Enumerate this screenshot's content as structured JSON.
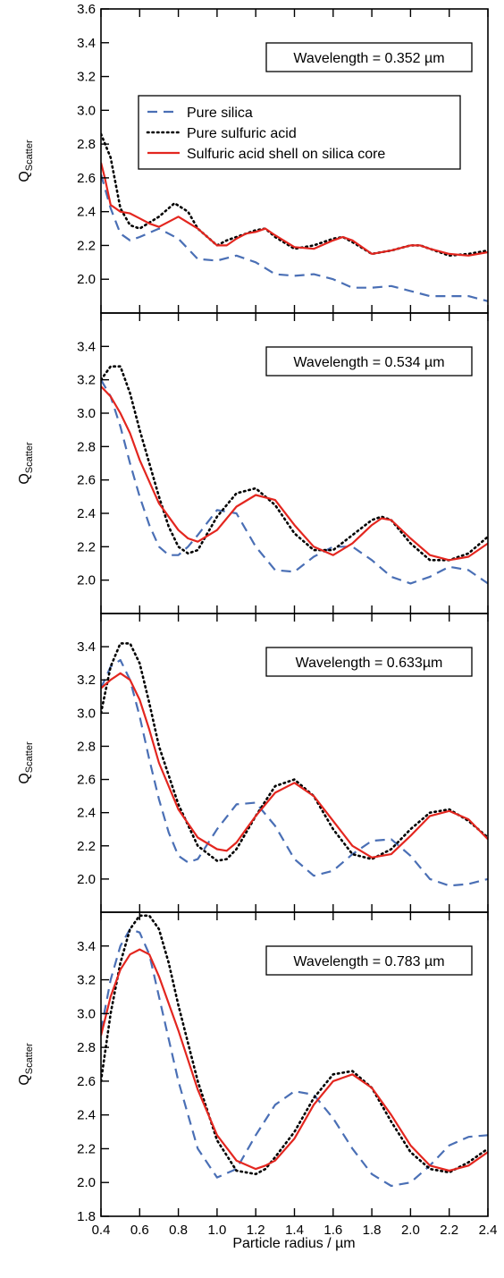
{
  "figure": {
    "xlabel": "Particle radius / µm",
    "ylabel_main": "Q",
    "ylabel_sub": "Scatter"
  },
  "legend": {
    "entries": [
      {
        "name": "Pure silica",
        "color": "#4a6fb5",
        "style": "dashed"
      },
      {
        "name": "Pure sulfuric acid",
        "color": "#000000",
        "style": "dotted"
      },
      {
        "name": "Sulfuric acid shell on silica core",
        "color": "#e3261f",
        "style": "solid"
      }
    ]
  },
  "chart_data": [
    {
      "type": "line",
      "annotation": "Wavelength = 0.352 µm",
      "xlim": [
        0.4,
        2.4
      ],
      "ylim": [
        1.8,
        3.6
      ],
      "yticks": [
        "2.0",
        "2.2",
        "2.4",
        "2.6",
        "2.8",
        "3.0",
        "3.2",
        "3.4",
        "3.6"
      ],
      "yticks_values": [
        2.0,
        2.2,
        2.4,
        2.6,
        2.8,
        3.0,
        3.2,
        3.4,
        3.6
      ],
      "series": [
        {
          "name": "Pure silica",
          "x": [
            0.4,
            0.45,
            0.5,
            0.55,
            0.6,
            0.7,
            0.8,
            0.9,
            1.0,
            1.1,
            1.2,
            1.3,
            1.4,
            1.5,
            1.6,
            1.7,
            1.8,
            1.9,
            2.0,
            2.1,
            2.2,
            2.3,
            2.4
          ],
          "y": [
            2.62,
            2.42,
            2.27,
            2.23,
            2.25,
            2.3,
            2.24,
            2.12,
            2.11,
            2.14,
            2.1,
            2.03,
            2.02,
            2.03,
            2.0,
            1.95,
            1.95,
            1.96,
            1.93,
            1.9,
            1.9,
            1.9,
            1.87
          ]
        },
        {
          "name": "Pure sulfuric acid",
          "x": [
            0.4,
            0.45,
            0.5,
            0.55,
            0.6,
            0.7,
            0.78,
            0.85,
            0.9,
            1.0,
            1.05,
            1.1,
            1.2,
            1.25,
            1.3,
            1.4,
            1.5,
            1.6,
            1.65,
            1.7,
            1.8,
            1.9,
            2.0,
            2.05,
            2.1,
            2.2,
            2.3,
            2.4
          ],
          "y": [
            2.86,
            2.72,
            2.42,
            2.32,
            2.3,
            2.37,
            2.45,
            2.4,
            2.3,
            2.2,
            2.23,
            2.25,
            2.29,
            2.3,
            2.25,
            2.18,
            2.2,
            2.24,
            2.25,
            2.22,
            2.15,
            2.17,
            2.2,
            2.2,
            2.18,
            2.14,
            2.15,
            2.17
          ]
        },
        {
          "name": "Sulfuric acid shell on silica core",
          "x": [
            0.4,
            0.42,
            0.45,
            0.5,
            0.55,
            0.6,
            0.65,
            0.7,
            0.8,
            0.9,
            1.0,
            1.05,
            1.1,
            1.15,
            1.2,
            1.25,
            1.3,
            1.4,
            1.5,
            1.6,
            1.65,
            1.7,
            1.8,
            1.9,
            2.0,
            2.05,
            2.1,
            2.2,
            2.3,
            2.4
          ],
          "y": [
            2.69,
            2.6,
            2.44,
            2.4,
            2.39,
            2.36,
            2.33,
            2.31,
            2.37,
            2.3,
            2.2,
            2.2,
            2.24,
            2.27,
            2.28,
            2.3,
            2.26,
            2.19,
            2.18,
            2.23,
            2.25,
            2.23,
            2.15,
            2.17,
            2.2,
            2.2,
            2.18,
            2.15,
            2.14,
            2.16
          ]
        }
      ]
    },
    {
      "type": "line",
      "annotation": "Wavelength = 0.534 µm",
      "xlim": [
        0.4,
        2.4
      ],
      "ylim": [
        1.8,
        3.6
      ],
      "yticks": [
        "2.0",
        "2.2",
        "2.4",
        "2.6",
        "2.8",
        "3.0",
        "3.2",
        "3.4"
      ],
      "yticks_values": [
        2.0,
        2.2,
        2.4,
        2.6,
        2.8,
        3.0,
        3.2,
        3.4
      ],
      "series": [
        {
          "name": "Pure silica",
          "x": [
            0.4,
            0.45,
            0.5,
            0.55,
            0.6,
            0.65,
            0.7,
            0.75,
            0.8,
            0.85,
            0.9,
            1.0,
            1.1,
            1.2,
            1.3,
            1.4,
            1.5,
            1.6,
            1.7,
            1.8,
            1.9,
            2.0,
            2.1,
            2.2,
            2.3,
            2.4
          ],
          "y": [
            3.2,
            3.1,
            2.92,
            2.7,
            2.5,
            2.33,
            2.2,
            2.15,
            2.15,
            2.2,
            2.27,
            2.42,
            2.4,
            2.2,
            2.06,
            2.05,
            2.14,
            2.2,
            2.2,
            2.12,
            2.02,
            1.98,
            2.02,
            2.08,
            2.06,
            1.98
          ]
        },
        {
          "name": "Pure sulfuric acid",
          "x": [
            0.4,
            0.45,
            0.5,
            0.55,
            0.6,
            0.65,
            0.7,
            0.75,
            0.8,
            0.85,
            0.9,
            0.95,
            1.0,
            1.1,
            1.2,
            1.3,
            1.4,
            1.5,
            1.6,
            1.7,
            1.8,
            1.85,
            1.9,
            2.0,
            2.1,
            2.2,
            2.3,
            2.4
          ],
          "y": [
            3.2,
            3.28,
            3.28,
            3.12,
            2.9,
            2.7,
            2.5,
            2.32,
            2.2,
            2.16,
            2.18,
            2.28,
            2.38,
            2.52,
            2.55,
            2.45,
            2.28,
            2.18,
            2.18,
            2.27,
            2.36,
            2.38,
            2.36,
            2.22,
            2.12,
            2.12,
            2.16,
            2.26
          ]
        },
        {
          "name": "Sulfuric acid shell on silica core",
          "x": [
            0.4,
            0.45,
            0.5,
            0.55,
            0.6,
            0.7,
            0.8,
            0.85,
            0.9,
            1.0,
            1.1,
            1.2,
            1.3,
            1.4,
            1.5,
            1.6,
            1.7,
            1.8,
            1.85,
            1.9,
            2.0,
            2.1,
            2.2,
            2.3,
            2.4
          ],
          "y": [
            3.16,
            3.1,
            3.0,
            2.88,
            2.72,
            2.46,
            2.3,
            2.25,
            2.23,
            2.3,
            2.44,
            2.51,
            2.48,
            2.33,
            2.2,
            2.15,
            2.22,
            2.33,
            2.37,
            2.36,
            2.25,
            2.15,
            2.12,
            2.14,
            2.22
          ]
        }
      ]
    },
    {
      "type": "line",
      "annotation": "Wavelength = 0.633µm",
      "xlim": [
        0.4,
        2.4
      ],
      "ylim": [
        1.8,
        3.6
      ],
      "yticks": [
        "2.0",
        "2.2",
        "2.4",
        "2.6",
        "2.8",
        "3.0",
        "3.2",
        "3.4"
      ],
      "yticks_values": [
        2.0,
        2.2,
        2.4,
        2.6,
        2.8,
        3.0,
        3.2,
        3.4
      ],
      "series": [
        {
          "name": "Pure silica",
          "x": [
            0.4,
            0.45,
            0.5,
            0.55,
            0.6,
            0.65,
            0.7,
            0.75,
            0.8,
            0.85,
            0.9,
            1.0,
            1.1,
            1.2,
            1.3,
            1.4,
            1.5,
            1.6,
            1.7,
            1.8,
            1.9,
            2.0,
            2.1,
            2.2,
            2.3,
            2.4
          ],
          "y": [
            3.15,
            3.28,
            3.32,
            3.2,
            2.98,
            2.72,
            2.48,
            2.28,
            2.14,
            2.1,
            2.12,
            2.3,
            2.45,
            2.46,
            2.32,
            2.12,
            2.02,
            2.05,
            2.15,
            2.23,
            2.24,
            2.14,
            2.0,
            1.96,
            1.97,
            2.0
          ]
        },
        {
          "name": "Pure sulfuric acid",
          "x": [
            0.4,
            0.45,
            0.5,
            0.55,
            0.6,
            0.65,
            0.7,
            0.8,
            0.9,
            1.0,
            1.05,
            1.1,
            1.2,
            1.3,
            1.4,
            1.5,
            1.6,
            1.7,
            1.8,
            1.9,
            2.0,
            2.1,
            2.2,
            2.3,
            2.4
          ],
          "y": [
            3.0,
            3.28,
            3.42,
            3.42,
            3.3,
            3.06,
            2.8,
            2.45,
            2.2,
            2.11,
            2.12,
            2.18,
            2.38,
            2.56,
            2.6,
            2.5,
            2.3,
            2.15,
            2.12,
            2.18,
            2.3,
            2.4,
            2.42,
            2.35,
            2.25
          ]
        },
        {
          "name": "Sulfuric acid shell on silica core",
          "x": [
            0.4,
            0.45,
            0.5,
            0.55,
            0.6,
            0.65,
            0.7,
            0.8,
            0.9,
            1.0,
            1.05,
            1.1,
            1.15,
            1.2,
            1.3,
            1.4,
            1.5,
            1.6,
            1.7,
            1.8,
            1.9,
            2.0,
            2.1,
            2.2,
            2.3,
            2.4
          ],
          "y": [
            3.15,
            3.2,
            3.24,
            3.2,
            3.08,
            2.9,
            2.7,
            2.42,
            2.25,
            2.18,
            2.17,
            2.22,
            2.3,
            2.38,
            2.52,
            2.58,
            2.5,
            2.35,
            2.2,
            2.13,
            2.15,
            2.26,
            2.38,
            2.41,
            2.36,
            2.24
          ]
        }
      ]
    },
    {
      "type": "line",
      "annotation": "Wavelength = 0.783 µm",
      "xlim": [
        0.4,
        2.4
      ],
      "ylim": [
        1.8,
        3.6
      ],
      "yticks": [
        "1.8",
        "2.0",
        "2.2",
        "2.4",
        "2.6",
        "2.8",
        "3.0",
        "3.2",
        "3.4"
      ],
      "yticks_values": [
        1.8,
        2.0,
        2.2,
        2.4,
        2.6,
        2.8,
        3.0,
        3.2,
        3.4
      ],
      "series": [
        {
          "name": "Pure silica",
          "x": [
            0.4,
            0.45,
            0.5,
            0.55,
            0.6,
            0.65,
            0.7,
            0.8,
            0.9,
            1.0,
            1.1,
            1.2,
            1.3,
            1.4,
            1.5,
            1.6,
            1.7,
            1.8,
            1.9,
            2.0,
            2.1,
            2.2,
            2.3,
            2.4
          ],
          "y": [
            2.9,
            3.2,
            3.4,
            3.5,
            3.48,
            3.35,
            3.1,
            2.6,
            2.2,
            2.03,
            2.08,
            2.28,
            2.46,
            2.54,
            2.52,
            2.38,
            2.2,
            2.05,
            1.98,
            2.0,
            2.1,
            2.22,
            2.27,
            2.28
          ]
        },
        {
          "name": "Pure sulfuric acid",
          "x": [
            0.4,
            0.45,
            0.5,
            0.55,
            0.6,
            0.65,
            0.7,
            0.75,
            0.8,
            0.9,
            1.0,
            1.1,
            1.2,
            1.25,
            1.3,
            1.4,
            1.5,
            1.6,
            1.7,
            1.8,
            1.9,
            2.0,
            2.1,
            2.2,
            2.3,
            2.4
          ],
          "y": [
            2.6,
            3.0,
            3.3,
            3.5,
            3.58,
            3.58,
            3.5,
            3.3,
            3.05,
            2.6,
            2.25,
            2.07,
            2.05,
            2.08,
            2.15,
            2.3,
            2.5,
            2.64,
            2.66,
            2.56,
            2.36,
            2.18,
            2.08,
            2.06,
            2.12,
            2.2
          ]
        },
        {
          "name": "Sulfuric acid shell on silica core",
          "x": [
            0.4,
            0.45,
            0.5,
            0.55,
            0.6,
            0.65,
            0.7,
            0.8,
            0.9,
            1.0,
            1.1,
            1.2,
            1.25,
            1.3,
            1.4,
            1.5,
            1.6,
            1.7,
            1.8,
            1.9,
            2.0,
            2.1,
            2.2,
            2.3,
            2.4
          ],
          "y": [
            2.87,
            3.1,
            3.26,
            3.35,
            3.38,
            3.35,
            3.22,
            2.9,
            2.55,
            2.28,
            2.13,
            2.08,
            2.1,
            2.13,
            2.26,
            2.46,
            2.6,
            2.64,
            2.56,
            2.4,
            2.22,
            2.1,
            2.07,
            2.1,
            2.18
          ]
        }
      ]
    }
  ],
  "xticks": [
    "0.4",
    "0.6",
    "0.8",
    "1.0",
    "1.2",
    "1.4",
    "1.6",
    "1.8",
    "2.0",
    "2.2",
    "2.4"
  ],
  "xticks_values": [
    0.4,
    0.6,
    0.8,
    1.0,
    1.2,
    1.4,
    1.6,
    1.8,
    2.0,
    2.2,
    2.4
  ]
}
